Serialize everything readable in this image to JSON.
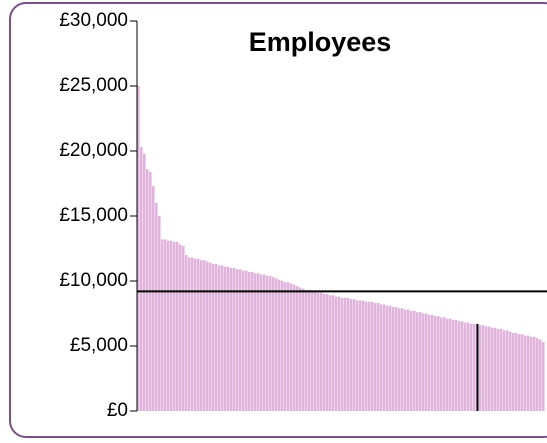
{
  "chart_data": {
    "type": "bar",
    "title": "Employees",
    "values": [
      25000,
      20300,
      19800,
      18600,
      18400,
      17300,
      16000,
      15000,
      13200,
      13200,
      13100,
      13100,
      13000,
      13000,
      12800,
      12700,
      12000,
      11800,
      11800,
      11700,
      11700,
      11600,
      11600,
      11500,
      11400,
      11300,
      11300,
      11200,
      11200,
      11100,
      11100,
      11000,
      11000,
      10900,
      10900,
      10800,
      10800,
      10700,
      10700,
      10600,
      10600,
      10500,
      10500,
      10400,
      10400,
      10300,
      10200,
      10100,
      10000,
      9900,
      9900,
      9800,
      9700,
      9600,
      9500,
      9400,
      9300,
      9300,
      9200,
      9200,
      9100,
      9100,
      9000,
      9000,
      8900,
      8900,
      8800,
      8800,
      8700,
      8700,
      8700,
      8600,
      8600,
      8500,
      8500,
      8500,
      8400,
      8400,
      8400,
      8300,
      8300,
      8200,
      8200,
      8100,
      8100,
      8000,
      8000,
      7900,
      7900,
      7800,
      7800,
      7700,
      7700,
      7600,
      7600,
      7500,
      7500,
      7400,
      7400,
      7300,
      7300,
      7200,
      7200,
      7100,
      7100,
      7000,
      7000,
      6900,
      6900,
      6800,
      6800,
      6700,
      6700,
      6700,
      6600,
      6600,
      6500,
      6500,
      6400,
      6400,
      6300,
      6300,
      6200,
      6200,
      6100,
      6000,
      6000,
      5900,
      5900,
      5800,
      5800,
      5700,
      5700,
      5600,
      5500,
      5300
    ],
    "color": "#dfb3dc",
    "reference_line": 9200,
    "highlight_index": 113,
    "ylim": [
      0,
      30000
    ],
    "yticks": [
      {
        "value": 0,
        "label": "£0"
      },
      {
        "value": 5000,
        "label": "£5,000"
      },
      {
        "value": 10000,
        "label": "£10,000"
      },
      {
        "value": 15000,
        "label": "£15,000"
      },
      {
        "value": 20000,
        "label": "£20,000"
      },
      {
        "value": 25000,
        "label": "£25,000"
      },
      {
        "value": 30000,
        "label": "£30,000"
      }
    ]
  }
}
